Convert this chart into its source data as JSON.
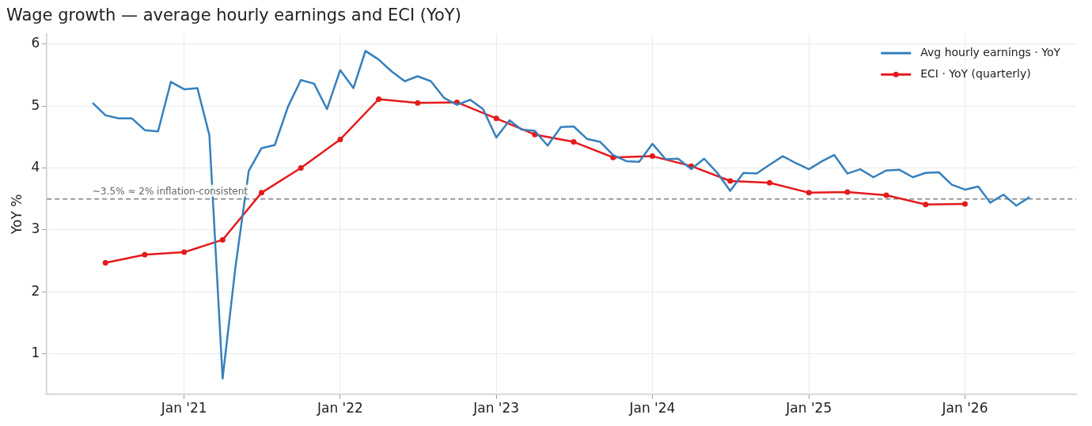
{
  "chart_data": {
    "type": "line",
    "title": "Wage growth — average hourly earnings and ECI (YoY)",
    "ylabel": "YoY %",
    "xlim": [
      "2020-02-15",
      "2026-09-18"
    ],
    "ylim": [
      0.35,
      6.16
    ],
    "xticks": [
      {
        "value": "2021-01",
        "label": "Jan '21"
      },
      {
        "value": "2022-01",
        "label": "Jan '22"
      },
      {
        "value": "2023-01",
        "label": "Jan '23"
      },
      {
        "value": "2024-01",
        "label": "Jan '24"
      },
      {
        "value": "2025-01",
        "label": "Jan '25"
      },
      {
        "value": "2026-01",
        "label": "Jan '26"
      }
    ],
    "yticks": [
      1,
      2,
      3,
      4,
      5,
      6
    ],
    "grid": true,
    "legend": "top right",
    "ref_lines": [
      {
        "axis": "y",
        "value": 3.5,
        "label": "~3.5% ≈ 2% inflation-consistent",
        "color": "#808080",
        "line_style": "dashed"
      }
    ],
    "series": [
      {
        "name": "Avg hourly earnings · YoY",
        "color": "#3680bd",
        "marker": "none",
        "x": [
          "2020-06",
          "2020-07",
          "2020-08",
          "2020-09",
          "2020-10",
          "2020-11",
          "2020-12",
          "2021-01",
          "2021-02",
          "2021-03",
          "2021-04",
          "2021-05",
          "2021-06",
          "2021-07",
          "2021-08",
          "2021-09",
          "2021-10",
          "2021-11",
          "2021-12",
          "2022-01",
          "2022-02",
          "2022-03",
          "2022-04",
          "2022-05",
          "2022-06",
          "2022-07",
          "2022-08",
          "2022-09",
          "2022-10",
          "2022-11",
          "2022-12",
          "2023-01",
          "2023-02",
          "2023-03",
          "2023-04",
          "2023-05",
          "2023-06",
          "2023-07",
          "2023-08",
          "2023-09",
          "2023-10",
          "2023-11",
          "2023-12",
          "2024-01",
          "2024-02",
          "2024-03",
          "2024-04",
          "2024-05",
          "2024-06",
          "2024-07",
          "2024-08",
          "2024-09",
          "2024-10",
          "2024-11",
          "2024-12",
          "2025-01",
          "2025-02",
          "2025-03",
          "2025-04",
          "2025-05",
          "2025-06",
          "2025-07",
          "2025-08",
          "2025-09",
          "2025-10",
          "2025-11",
          "2025-12",
          "2026-01",
          "2026-02",
          "2026-03",
          "2026-04",
          "2026-05",
          "2026-06"
        ],
        "values": [
          5.05,
          4.85,
          4.8,
          4.8,
          4.61,
          4.59,
          5.39,
          5.27,
          5.29,
          4.53,
          0.6,
          2.4,
          3.95,
          4.32,
          4.37,
          4.99,
          5.42,
          5.36,
          4.95,
          5.58,
          5.29,
          5.89,
          5.75,
          5.56,
          5.4,
          5.48,
          5.4,
          5.13,
          5.02,
          5.1,
          4.95,
          4.49,
          4.77,
          4.62,
          4.6,
          4.36,
          4.66,
          4.67,
          4.47,
          4.42,
          4.21,
          4.11,
          4.1,
          4.39,
          4.14,
          4.15,
          3.98,
          4.15,
          3.92,
          3.63,
          3.92,
          3.91,
          4.05,
          4.19,
          4.08,
          3.98,
          4.11,
          4.21,
          3.91,
          3.98,
          3.85,
          3.96,
          3.97,
          3.85,
          3.92,
          3.93,
          3.73,
          3.65,
          3.7,
          3.44,
          3.57,
          3.39,
          3.53
        ]
      },
      {
        "name": "ECI · YoY (quarterly)",
        "color": "#e41a1c",
        "marker": "circle",
        "x": [
          "2020-07",
          "2020-10",
          "2021-01",
          "2021-04",
          "2021-07",
          "2021-10",
          "2022-01",
          "2022-04",
          "2022-07",
          "2022-10",
          "2023-01",
          "2023-04",
          "2023-07",
          "2023-10",
          "2024-01",
          "2024-04",
          "2024-07",
          "2024-10",
          "2025-01",
          "2025-04",
          "2025-07",
          "2025-10",
          "2026-01"
        ],
        "values": [
          2.47,
          2.6,
          2.64,
          2.84,
          3.6,
          4.0,
          4.46,
          5.11,
          5.05,
          5.06,
          4.8,
          4.54,
          4.42,
          4.17,
          4.19,
          4.03,
          3.79,
          3.76,
          3.6,
          3.61,
          3.56,
          3.41,
          3.42
        ]
      }
    ]
  }
}
